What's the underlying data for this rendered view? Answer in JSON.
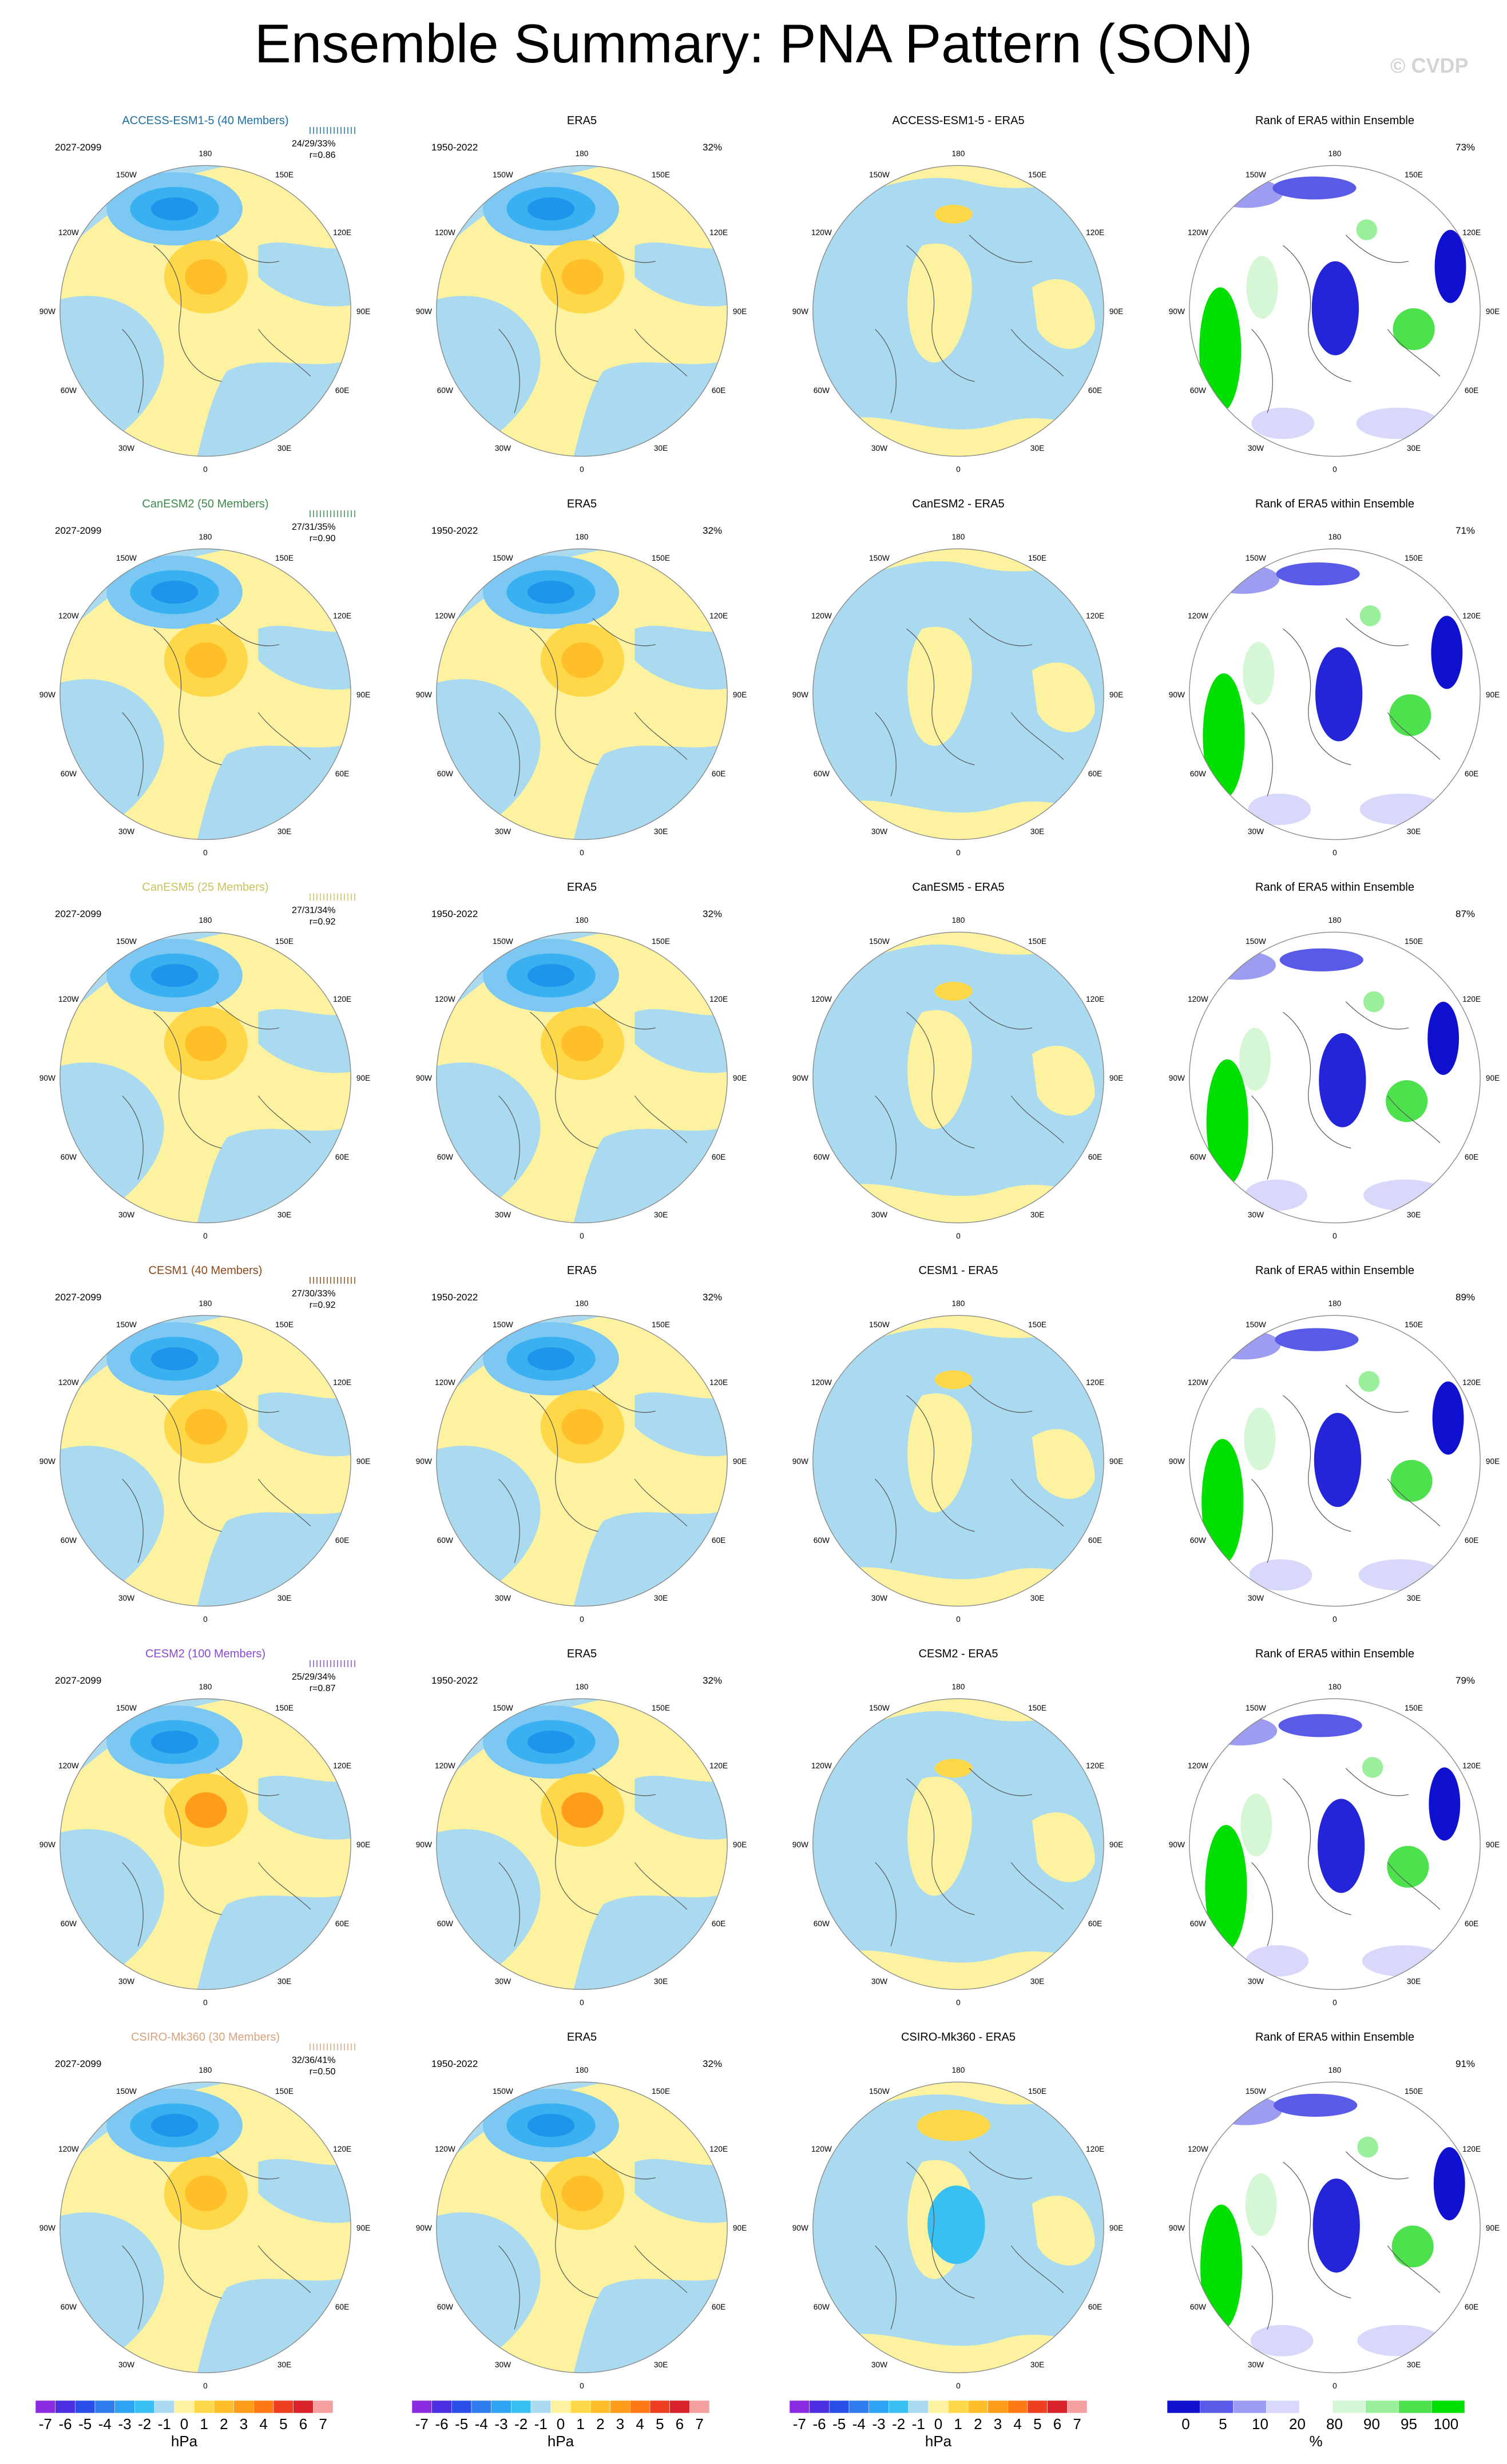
{
  "title": "Ensemble Summary: PNA Pattern (SON)",
  "watermark": "© CVDP",
  "lon_labels": [
    "180",
    "150E",
    "120E",
    "90E",
    "60E",
    "30E",
    "0",
    "30W",
    "60W",
    "90W",
    "120W",
    "150W"
  ],
  "rows": [
    {
      "model": "ACCESS-ESM1-5 (40 Members)",
      "diff": "ACCESS-ESM1-5 - ERA5",
      "model_color": "#1f6ea0",
      "stats": "24/29/33%",
      "r": "r=0.86",
      "obs_pct": "32%",
      "rank_pct": "73%"
    },
    {
      "model": "CanESM2 (50 Members)",
      "diff": "CanESM2 - ERA5",
      "model_color": "#3d8a4a",
      "stats": "27/31/35%",
      "r": "r=0.90",
      "obs_pct": "32%",
      "rank_pct": "71%"
    },
    {
      "model": "CanESM5 (25 Members)",
      "diff": "CanESM5 - ERA5",
      "model_color": "#c9c45f",
      "stats": "27/31/34%",
      "r": "r=0.92",
      "obs_pct": "32%",
      "rank_pct": "87%"
    },
    {
      "model": "CESM1 (40 Members)",
      "diff": "CESM1 - ERA5",
      "model_color": "#8a4a1d",
      "stats": "27/30/33%",
      "r": "r=0.92",
      "obs_pct": "32%",
      "rank_pct": "89%"
    },
    {
      "model": "CESM2 (100 Members)",
      "diff": "CESM2 - ERA5",
      "model_color": "#8a4ad0",
      "stats": "25/29/34%",
      "r": "r=0.87",
      "obs_pct": "32%",
      "rank_pct": "79%"
    },
    {
      "model": "CSIRO-Mk360 (30 Members)",
      "diff": "CSIRO-Mk360 - ERA5",
      "model_color": "#d8a27c",
      "stats": "32/36/41%",
      "r": "r=0.50",
      "obs_pct": "32%",
      "rank_pct": "91%"
    }
  ],
  "obs_title": "ERA5",
  "rank_title": "Rank of ERA5 within Ensemble",
  "model_period": "2027-2099",
  "obs_period": "1950-2022",
  "colorbar_hpa": {
    "labels": [
      "-7",
      "-6",
      "-5",
      "-4",
      "-3",
      "-2",
      "-1",
      "0",
      "1",
      "2",
      "3",
      "4",
      "5",
      "6",
      "7"
    ],
    "unit": "hPa",
    "colors": [
      "#8a2be2",
      "#4b2fe0",
      "#2a4fe8",
      "#2f7bf0",
      "#2ea3f2",
      "#39c0f3",
      "#a9daf0",
      "#fdf2a0",
      "#ffd84a",
      "#ffbf28",
      "#ff9d1a",
      "#ff7a14",
      "#ee4020",
      "#d9222a",
      "#f5a0a0"
    ]
  },
  "colorbar_rank": {
    "labels": [
      "0",
      "5",
      "10",
      "20",
      "80",
      "90",
      "95",
      "100"
    ],
    "unit": "%",
    "colors": [
      "#1010d0",
      "#5a5ae8",
      "#9c9cf0",
      "#d8d8fa",
      "#ffffff",
      "#d6f7d6",
      "#9af09a",
      "#4de24d",
      "#00e000"
    ]
  }
}
